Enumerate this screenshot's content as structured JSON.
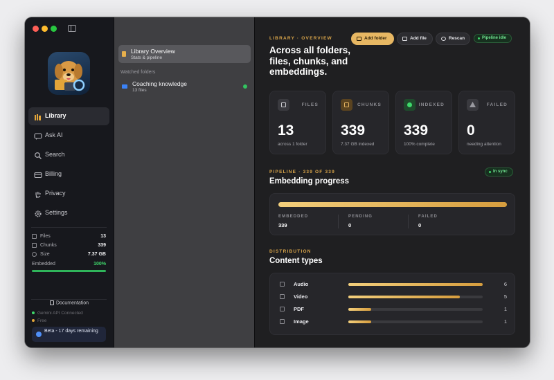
{
  "sidebar": {
    "nav": [
      {
        "label": "Library",
        "icon": "library-icon",
        "active": true
      },
      {
        "label": "Ask AI",
        "icon": "chat-icon"
      },
      {
        "label": "Search",
        "icon": "search-icon"
      },
      {
        "label": "Billing",
        "icon": "billing-icon"
      },
      {
        "label": "Privacy",
        "icon": "hand-icon"
      },
      {
        "label": "Settings",
        "icon": "gear-icon"
      }
    ],
    "stats": [
      {
        "label": "Files",
        "value": "13"
      },
      {
        "label": "Chunks",
        "value": "339"
      },
      {
        "label": "Size",
        "value": "7.37 GB"
      },
      {
        "label": "Embedded",
        "value": "100%"
      }
    ],
    "embedded_fraction": 1.0,
    "documentation": "Documentation",
    "api_status": "Gemini API Connected",
    "plan": "Free",
    "beta": "Beta - 17 days remaining"
  },
  "middle": {
    "selected": {
      "title": "Library Overview",
      "subtitle": "Stats & pipeline"
    },
    "section_label": "Watched folders",
    "folders": [
      {
        "name": "Coaching knowledge",
        "files": "13 files"
      }
    ]
  },
  "main": {
    "eyebrow": "LIBRARY · OVERVIEW",
    "title": "Across all folders, files, chunks, and embeddings.",
    "actions": {
      "add_folder": "Add folder",
      "add_file": "Add file",
      "rescan": "Rescan"
    },
    "pipeline_status": "Pipeline idle",
    "cards": [
      {
        "label": "FILES",
        "value": "13",
        "sub": "across 1 folder",
        "icon": "file-icon"
      },
      {
        "label": "CHUNKS",
        "value": "339",
        "sub": "7.37 GB indexed",
        "icon": "box-icon"
      },
      {
        "label": "INDEXED",
        "value": "339",
        "sub": "100% complete",
        "icon": "check-icon"
      },
      {
        "label": "FAILED",
        "value": "0",
        "sub": "needing attention",
        "icon": "warning-icon"
      }
    ],
    "pipeline": {
      "eyebrow": "PIPELINE · 339 OF 339",
      "title": "Embedding progress",
      "sync_status": "In sync",
      "progress_fraction": 1.0,
      "embedded_label": "EMBEDDED",
      "embedded": "339",
      "pending_label": "PENDING",
      "pending": "0",
      "failed_label": "FAILED",
      "failed": "0"
    },
    "distribution": {
      "eyebrow": "DISTRIBUTION",
      "title": "Content types",
      "types": [
        {
          "label": "Audio",
          "count": "6",
          "fraction": 1.0,
          "icon": "audio-icon"
        },
        {
          "label": "Video",
          "count": "5",
          "fraction": 0.83,
          "icon": "video-icon"
        },
        {
          "label": "PDF",
          "count": "1",
          "fraction": 0.17,
          "icon": "pdf-icon"
        },
        {
          "label": "Image",
          "count": "1",
          "fraction": 0.17,
          "icon": "image-icon"
        }
      ]
    }
  }
}
